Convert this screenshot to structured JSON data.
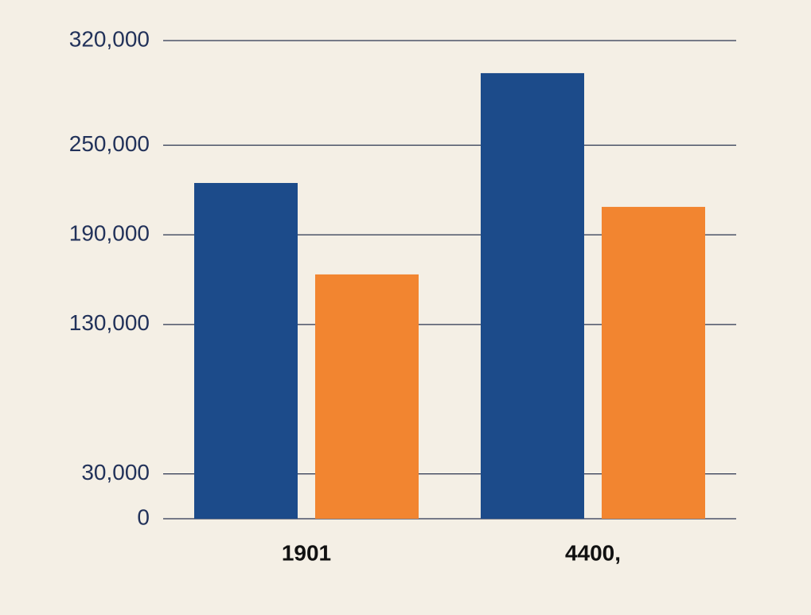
{
  "chart_data": {
    "type": "bar",
    "categories": [
      "1901",
      "4400,"
    ],
    "series": [
      {
        "color": "#1c4b8a",
        "values": [
          224700,
          298200
        ]
      },
      {
        "color": "#f28530",
        "values": [
          163500,
          208700
        ]
      }
    ],
    "ylim": [
      0,
      320000
    ],
    "yticks": [
      {
        "value": 320000,
        "label": "320,000"
      },
      {
        "value": 250000,
        "label": "250,000"
      },
      {
        "value": 130000,
        "label": "130,000"
      },
      {
        "value": 190000,
        "label": "190,000"
      },
      {
        "value": 30000,
        "label": "30,000"
      },
      0
    ],
    "grid": true
  }
}
